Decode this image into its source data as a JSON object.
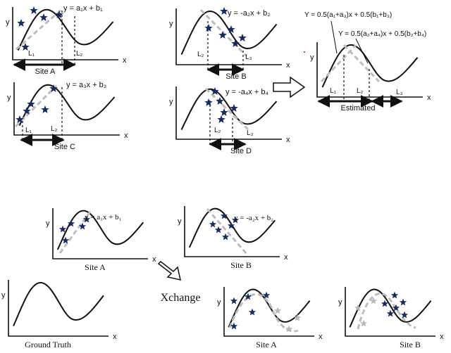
{
  "axis": {
    "x": "x",
    "y": "y"
  },
  "top": {
    "site_a": {
      "title": "Site A",
      "equation": "y = a₁x + b₁",
      "labels": [
        "L₁",
        "L₂"
      ]
    },
    "site_b": {
      "title": "Site B",
      "equation": "y = -a₂x + b₂",
      "labels": [
        "L₂",
        "L₃"
      ]
    },
    "site_c": {
      "title": "Site C",
      "equation": "y = a₃x + b₃",
      "labels": [
        "L₁",
        "L₂"
      ]
    },
    "site_d": {
      "title": "Site D",
      "equation": "y = -a₄x + b₄",
      "labels": [
        "L₂",
        "L₃"
      ]
    },
    "estimated": {
      "title": "Estimated",
      "eq1": "Y = 0.5(a₁+a₃)x + 0.5(b₁+b₃)",
      "eq2": "Y = 0.5(a₂+a₄)x + 0.5(b₂+b₄)",
      "labels": [
        "L₁",
        "L₂",
        "L₃"
      ]
    }
  },
  "bottom": {
    "site_a": {
      "title": "Site A",
      "equation": "y = a₁x + b₁"
    },
    "site_b": {
      "title": "Site B",
      "equation": "y = -a₂x + b₂"
    },
    "xchange": "Xchange",
    "ground_truth": "Ground Truth",
    "out_a": "Site A",
    "out_b": "Site B"
  },
  "colors": {
    "star": "#1b2a5c",
    "star_gray": "#b8b8b8",
    "dash": "#bdbdbd",
    "curve": "#111111"
  }
}
